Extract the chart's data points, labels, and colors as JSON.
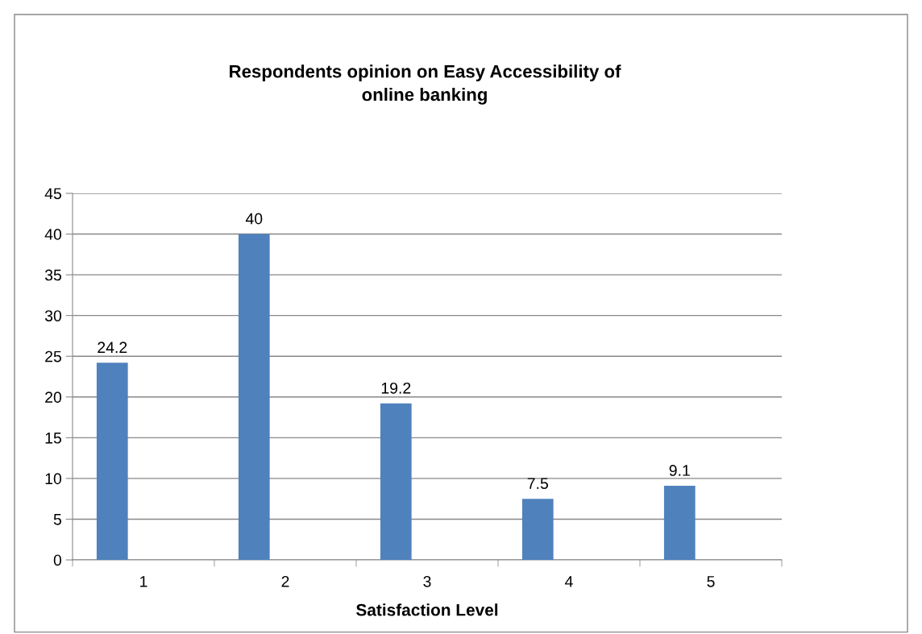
{
  "chart_data": {
    "type": "bar",
    "title": "Respondents opinion on Easy Accessibility of\nonline banking",
    "xlabel": "Satisfaction Level",
    "categories": [
      "1",
      "2",
      "3",
      "4",
      "5"
    ],
    "values": [
      24.2,
      40,
      19.2,
      7.5,
      9.1
    ],
    "color": "#4f81bd",
    "ylim": [
      0,
      45
    ],
    "yticks": [
      0,
      5,
      10,
      15,
      20,
      25,
      30,
      35,
      40,
      45
    ],
    "grid": "y",
    "data_labels": true,
    "legend": false
  }
}
